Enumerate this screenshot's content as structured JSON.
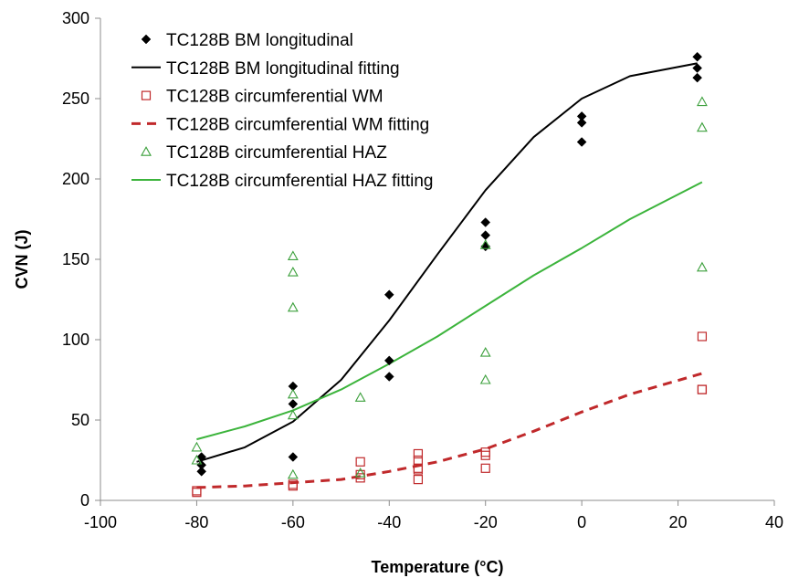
{
  "chart_data": {
    "type": "scatter",
    "xlabel": "Temperature (°C)",
    "ylabel": "CVN (J)",
    "xlim": [
      -100,
      40
    ],
    "ylim": [
      0,
      300
    ],
    "xticks": [
      -100,
      -80,
      -60,
      -40,
      -20,
      0,
      20,
      40
    ],
    "yticks": [
      0,
      50,
      100,
      150,
      200,
      250,
      300
    ],
    "grid": false,
    "legend_position": "top-left",
    "series": [
      {
        "name": "TC128B BM longitudinal",
        "kind": "scatter",
        "marker": "diamond",
        "color": "#000000",
        "points": [
          [
            -79,
            27
          ],
          [
            -79,
            22
          ],
          [
            -79,
            18
          ],
          [
            -60,
            71
          ],
          [
            -60,
            60
          ],
          [
            -60,
            27
          ],
          [
            -40,
            128
          ],
          [
            -40,
            87
          ],
          [
            -40,
            77
          ],
          [
            -20,
            173
          ],
          [
            -20,
            165
          ],
          [
            -20,
            158
          ],
          [
            0,
            239
          ],
          [
            0,
            235
          ],
          [
            0,
            223
          ],
          [
            24,
            276
          ],
          [
            24,
            269
          ],
          [
            24,
            263
          ]
        ]
      },
      {
        "name": "TC128B BM longitudinal fitting",
        "kind": "line",
        "style": "solid",
        "color": "#000000",
        "points": [
          [
            -80,
            24
          ],
          [
            -70,
            33
          ],
          [
            -60,
            49
          ],
          [
            -50,
            75
          ],
          [
            -40,
            112
          ],
          [
            -30,
            153
          ],
          [
            -20,
            193
          ],
          [
            -10,
            226
          ],
          [
            0,
            250
          ],
          [
            10,
            264
          ],
          [
            24,
            272
          ]
        ]
      },
      {
        "name": "TC128B circumferential WM",
        "kind": "scatter",
        "marker": "square-open",
        "color": "#c0292b",
        "points": [
          [
            -80,
            6
          ],
          [
            -80,
            5
          ],
          [
            -60,
            10
          ],
          [
            -60,
            9
          ],
          [
            -46,
            24
          ],
          [
            -46,
            16
          ],
          [
            -46,
            14
          ],
          [
            -34,
            29
          ],
          [
            -34,
            25
          ],
          [
            -34,
            20
          ],
          [
            -34,
            19
          ],
          [
            -34,
            13
          ],
          [
            -20,
            30
          ],
          [
            -20,
            28
          ],
          [
            -20,
            20
          ],
          [
            25,
            102
          ],
          [
            25,
            69
          ],
          [
            25,
            69
          ]
        ]
      },
      {
        "name": "TC128B circumferential WM fitting",
        "kind": "line",
        "style": "dashed",
        "color": "#c0292b",
        "points": [
          [
            -80,
            8
          ],
          [
            -70,
            9
          ],
          [
            -60,
            11
          ],
          [
            -50,
            13
          ],
          [
            -40,
            18
          ],
          [
            -30,
            24
          ],
          [
            -20,
            32
          ],
          [
            -10,
            43
          ],
          [
            0,
            55
          ],
          [
            10,
            66
          ],
          [
            25,
            79
          ]
        ]
      },
      {
        "name": "TC128B circumferential HAZ",
        "kind": "scatter",
        "marker": "triangle-open",
        "color": "#3ca03c",
        "points": [
          [
            -80,
            33
          ],
          [
            -80,
            25
          ],
          [
            -60,
            152
          ],
          [
            -60,
            142
          ],
          [
            -60,
            120
          ],
          [
            -60,
            66
          ],
          [
            -60,
            53
          ],
          [
            -60,
            16
          ],
          [
            -46,
            64
          ],
          [
            -46,
            17
          ],
          [
            -20,
            159
          ],
          [
            -20,
            92
          ],
          [
            -20,
            75
          ],
          [
            25,
            248
          ],
          [
            25,
            232
          ],
          [
            25,
            145
          ]
        ]
      },
      {
        "name": "TC128B circumferential HAZ fitting",
        "kind": "line",
        "style": "solid",
        "color": "#3cb43c",
        "points": [
          [
            -80,
            38
          ],
          [
            -70,
            46
          ],
          [
            -60,
            56
          ],
          [
            -50,
            69
          ],
          [
            -40,
            85
          ],
          [
            -30,
            102
          ],
          [
            -20,
            121
          ],
          [
            -10,
            140
          ],
          [
            0,
            157
          ],
          [
            10,
            175
          ],
          [
            25,
            198
          ]
        ]
      }
    ]
  }
}
